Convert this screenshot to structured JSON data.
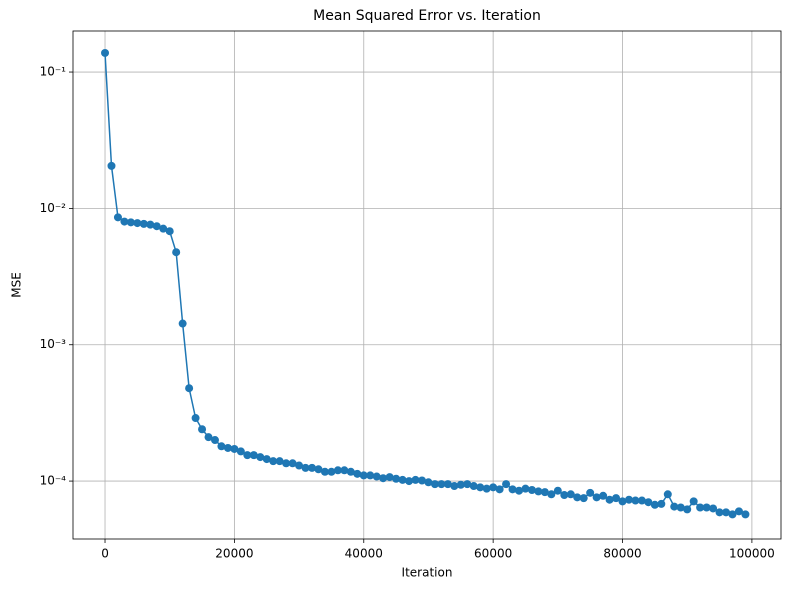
{
  "chart_data": {
    "type": "line",
    "title": "Mean Squared Error vs. Iteration",
    "x_label": "Iteration",
    "y_label": "MSE",
    "color": "#1f77b4",
    "log_y": true,
    "grid": true,
    "marker": "circle",
    "x": [
      0,
      1000,
      2000,
      3000,
      4000,
      5000,
      6000,
      7000,
      8000,
      9000,
      10000,
      11000,
      12000,
      13000,
      14000,
      15000,
      16000,
      17000,
      18000,
      19000,
      20000,
      21000,
      22000,
      23000,
      24000,
      25000,
      26000,
      27000,
      28000,
      29000,
      30000,
      31000,
      32000,
      33000,
      34000,
      35000,
      36000,
      37000,
      38000,
      39000,
      40000,
      41000,
      42000,
      43000,
      44000,
      45000,
      46000,
      47000,
      48000,
      49000,
      50000,
      51000,
      52000,
      53000,
      54000,
      55000,
      56000,
      57000,
      58000,
      59000,
      60000,
      61000,
      62000,
      63000,
      64000,
      65000,
      66000,
      67000,
      68000,
      69000,
      70000,
      71000,
      72000,
      73000,
      74000,
      75000,
      76000,
      77000,
      78000,
      79000,
      80000,
      81000,
      82000,
      83000,
      84000,
      85000,
      86000,
      87000,
      88000,
      89000,
      90000,
      91000,
      92000,
      93000,
      94000,
      95000,
      96000,
      97000,
      98000,
      99000
    ],
    "values": [
      0.138,
      0.0205,
      0.0086,
      0.008,
      0.0079,
      0.0078,
      0.0077,
      0.0076,
      0.0074,
      0.0071,
      0.0068,
      0.00477,
      0.00143,
      0.00048,
      0.00029,
      0.00024,
      0.00021,
      0.0002,
      0.00018,
      0.000175,
      0.000172,
      0.000165,
      0.000155,
      0.000155,
      0.00015,
      0.000145,
      0.00014,
      0.00014,
      0.000135,
      0.000135,
      0.00013,
      0.000125,
      0.000125,
      0.000122,
      0.000117,
      0.000117,
      0.00012,
      0.00012,
      0.000117,
      0.000113,
      0.00011,
      0.00011,
      0.000108,
      0.000105,
      0.000107,
      0.000104,
      0.000102,
      0.0001,
      0.000102,
      0.000101,
      9.8e-05,
      9.5e-05,
      9.5e-05,
      9.5e-05,
      9.2e-05,
      9.4e-05,
      9.5e-05,
      9.2e-05,
      9e-05,
      8.8e-05,
      9e-05,
      8.7e-05,
      9.5e-05,
      8.7e-05,
      8.5e-05,
      8.8e-05,
      8.6e-05,
      8.4e-05,
      8.3e-05,
      8e-05,
      8.5e-05,
      7.9e-05,
      8e-05,
      7.6e-05,
      7.5e-05,
      8.2e-05,
      7.6e-05,
      7.8e-05,
      7.3e-05,
      7.5e-05,
      7.1e-05,
      7.3e-05,
      7.2e-05,
      7.2e-05,
      7e-05,
      6.7e-05,
      6.8e-05,
      8e-05,
      6.5e-05,
      6.4e-05,
      6.2e-05,
      7.1e-05,
      6.4e-05,
      6.4e-05,
      6.3e-05,
      5.9e-05,
      5.9e-05,
      5.7e-05,
      6e-05,
      5.7e-05
    ],
    "xlim": [
      -4950,
      104500
    ],
    "xticks": [
      0,
      20000,
      40000,
      60000,
      80000,
      100000
    ],
    "ylim": [
      3.76e-05,
      0.2
    ],
    "yticks": [
      {
        "value": 0.0001,
        "label": "10⁻⁴"
      },
      {
        "value": 0.001,
        "label": "10⁻³"
      },
      {
        "value": 0.01,
        "label": "10⁻²"
      },
      {
        "value": 0.1,
        "label": "10⁻¹"
      }
    ]
  }
}
